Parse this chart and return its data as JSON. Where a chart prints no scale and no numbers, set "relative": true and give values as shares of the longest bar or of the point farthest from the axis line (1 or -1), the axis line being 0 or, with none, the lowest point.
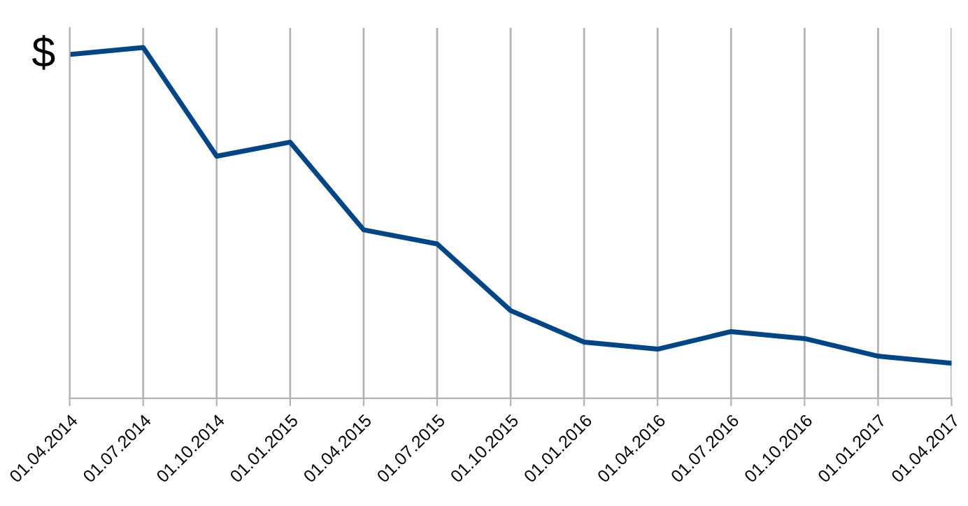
{
  "chart_data": {
    "type": "line",
    "ylabel": "$",
    "relative": true,
    "grid": "x",
    "legend": false,
    "categories": [
      "01.04.2014",
      "01.07.2014",
      "01.10.2014",
      "01.01.2015",
      "01.04.2015",
      "01.07.2015",
      "01.10.2015",
      "01.01.2016",
      "01.04.2016",
      "01.07.2016",
      "01.10.2016",
      "01.01.2017",
      "01.04.2017"
    ],
    "series": [
      {
        "color": "#004586",
        "values": [
          0.98,
          1,
          0.69,
          0.73,
          0.48,
          0.44,
          0.25,
          0.16,
          0.14,
          0.19,
          0.17,
          0.12,
          0.1
        ]
      }
    ]
  }
}
